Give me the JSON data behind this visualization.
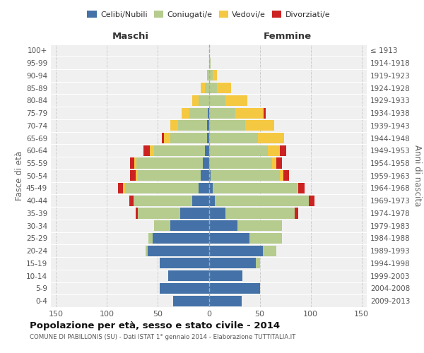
{
  "age_groups_btop": [
    "0-4",
    "5-9",
    "10-14",
    "15-19",
    "20-24",
    "25-29",
    "30-34",
    "35-39",
    "40-44",
    "45-49",
    "50-54",
    "55-59",
    "60-64",
    "65-69",
    "70-74",
    "75-79",
    "80-84",
    "85-89",
    "90-94",
    "95-99",
    "100+"
  ],
  "birth_years_btop": [
    "2009-2013",
    "2004-2008",
    "1999-2003",
    "1994-1998",
    "1989-1993",
    "1984-1988",
    "1979-1983",
    "1974-1978",
    "1969-1973",
    "1964-1968",
    "1959-1963",
    "1954-1958",
    "1949-1953",
    "1944-1948",
    "1939-1943",
    "1934-1938",
    "1929-1933",
    "1924-1928",
    "1919-1923",
    "1914-1918",
    "≤ 1913"
  ],
  "colors": {
    "celibi": "#4472a8",
    "coniugati": "#b5cc8e",
    "vedovi": "#f5c842",
    "divorziati": "#cc2222",
    "bg": "#f0f0f0",
    "grid": "#cccccc"
  },
  "legend": [
    "Celibi/Nubili",
    "Coniugati/e",
    "Vedovi/e",
    "Divorziati/e"
  ],
  "title": "Popolazione per età, sesso e stato civile - 2014",
  "subtitle": "COMUNE DI PABILLONIS (SU) - Dati ISTAT 1° gennaio 2014 - Elaborazione TUTTITALIA.IT",
  "ylabel_left": "Fasce di età",
  "ylabel_right": "Anni di nascita",
  "xlabel_maschi": "Maschi",
  "xlabel_femmine": "Femmine",
  "xlim": 155,
  "maschi_cel": [
    35,
    48,
    40,
    48,
    60,
    55,
    38,
    28,
    16,
    10,
    8,
    6,
    4,
    2,
    2,
    1,
    0,
    0,
    0,
    0,
    0
  ],
  "maschi_con": [
    0,
    0,
    0,
    0,
    2,
    4,
    16,
    42,
    58,
    72,
    62,
    65,
    50,
    36,
    28,
    18,
    10,
    4,
    2,
    0,
    0
  ],
  "maschi_ved": [
    0,
    0,
    0,
    0,
    0,
    0,
    0,
    0,
    0,
    2,
    2,
    2,
    4,
    6,
    8,
    8,
    6,
    4,
    0,
    0,
    0
  ],
  "maschi_div": [
    0,
    0,
    0,
    0,
    0,
    0,
    0,
    2,
    4,
    5,
    5,
    4,
    6,
    2,
    0,
    0,
    0,
    0,
    0,
    0,
    0
  ],
  "femmine_nub": [
    32,
    50,
    33,
    46,
    53,
    40,
    28,
    16,
    6,
    4,
    2,
    0,
    0,
    0,
    0,
    0,
    0,
    0,
    0,
    0,
    0
  ],
  "femmine_con": [
    0,
    0,
    0,
    4,
    13,
    32,
    44,
    68,
    92,
    82,
    68,
    62,
    58,
    48,
    36,
    26,
    16,
    8,
    4,
    2,
    0
  ],
  "femmine_ved": [
    0,
    0,
    0,
    0,
    0,
    0,
    0,
    0,
    0,
    2,
    3,
    4,
    12,
    26,
    28,
    28,
    22,
    14,
    4,
    0,
    0
  ],
  "femmine_div": [
    0,
    0,
    0,
    0,
    0,
    0,
    0,
    4,
    6,
    6,
    6,
    6,
    6,
    0,
    0,
    2,
    0,
    0,
    0,
    0,
    0
  ]
}
